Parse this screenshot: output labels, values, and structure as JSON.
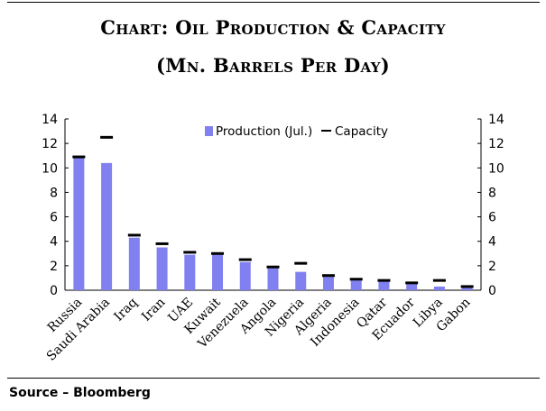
{
  "title_line1": "Chart: Oil Production  & Capacity",
  "title_line2": "(Mn. Barrels Per Day)",
  "source": "Source – Bloomberg",
  "colors": {
    "production": "#8080f0",
    "capacity": "#000000"
  },
  "chart_data": {
    "type": "bar",
    "categories": [
      "Russia",
      "Saudi Arabia",
      "Iraq",
      "Iran",
      "UAE",
      "Kuwait",
      "Venezuela",
      "Angola",
      "Nigeria",
      "Algeria",
      "Indonesia",
      "Qatar",
      "Ecuador",
      "Libya",
      "Gabon"
    ],
    "series": [
      {
        "name": "Production (Jul.)",
        "kind": "bar",
        "values": [
          10.8,
          10.4,
          4.3,
          3.5,
          2.9,
          2.9,
          2.3,
          1.8,
          1.5,
          1.1,
          0.8,
          0.7,
          0.5,
          0.3,
          0.2
        ]
      },
      {
        "name": "Capacity",
        "kind": "marker",
        "values": [
          10.9,
          12.5,
          4.5,
          3.8,
          3.1,
          3.0,
          2.5,
          1.9,
          2.2,
          1.2,
          0.9,
          0.8,
          0.6,
          0.8,
          0.3
        ]
      }
    ],
    "ylim": [
      0,
      14
    ],
    "yticks": [
      0,
      2,
      4,
      6,
      8,
      10,
      12,
      14
    ],
    "xlabel": "",
    "ylabel": "",
    "y2_axis": true,
    "grid": false,
    "legend_position": "top-center"
  }
}
